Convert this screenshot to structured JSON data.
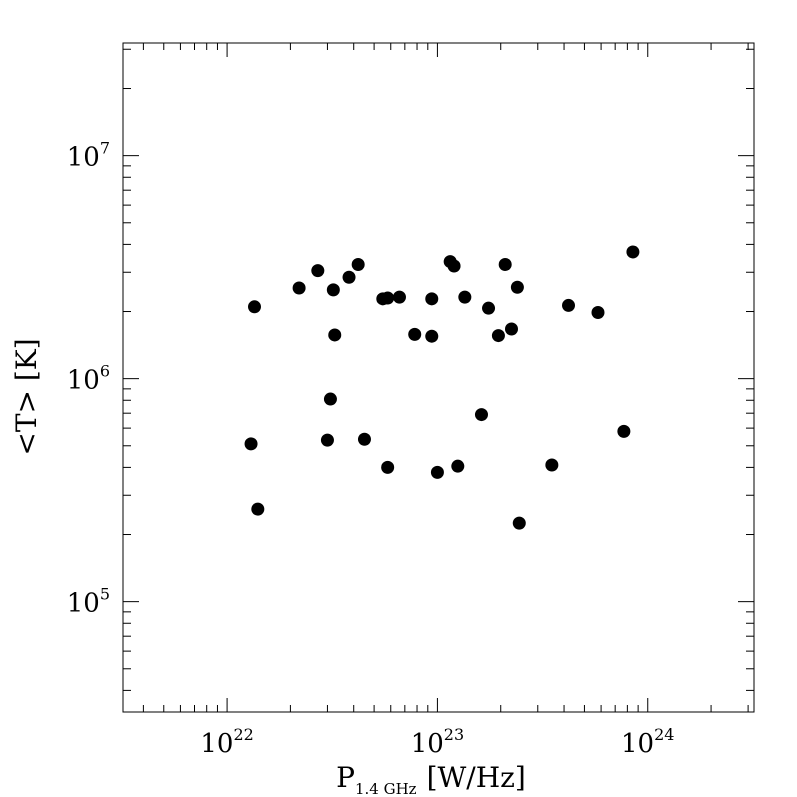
{
  "chart_data": {
    "type": "scatter",
    "title": "",
    "xlabel": {
      "main": "P",
      "sub": "1.4 GHz",
      "unit": "[W/Hz]"
    },
    "ylabel": "<T> [K]",
    "xscale": "log",
    "yscale": "log",
    "xlim": [
      3.2e+21,
      3.2e+24
    ],
    "ylim": [
      32000.0,
      32000000.0
    ],
    "grid": false,
    "marker_color": "#000000",
    "xticks": [
      {
        "base": "10",
        "exp": "22",
        "value": 1e+22
      },
      {
        "base": "10",
        "exp": "23",
        "value": 1e+23
      },
      {
        "base": "10",
        "exp": "24",
        "value": 1e+24
      }
    ],
    "yticks": [
      {
        "base": "10",
        "exp": "5",
        "value": 100000.0
      },
      {
        "base": "10",
        "exp": "6",
        "value": 1000000.0
      },
      {
        "base": "10",
        "exp": "7",
        "value": 10000000.0
      }
    ],
    "points": [
      {
        "x": 1.3e+22,
        "y": 510000.0
      },
      {
        "x": 1.35e+22,
        "y": 2100000.0
      },
      {
        "x": 1.4e+22,
        "y": 260000.0
      },
      {
        "x": 2.2e+22,
        "y": 2550000.0
      },
      {
        "x": 2.7e+22,
        "y": 3050000.0
      },
      {
        "x": 3e+22,
        "y": 530000.0
      },
      {
        "x": 3.1e+22,
        "y": 810000.0
      },
      {
        "x": 3.2e+22,
        "y": 2500000.0
      },
      {
        "x": 3.25e+22,
        "y": 1570000.0
      },
      {
        "x": 3.8e+22,
        "y": 2850000.0
      },
      {
        "x": 4.2e+22,
        "y": 3250000.0
      },
      {
        "x": 4.5e+22,
        "y": 535000.0
      },
      {
        "x": 5.5e+22,
        "y": 2280000.0
      },
      {
        "x": 5.8e+22,
        "y": 2300000.0
      },
      {
        "x": 5.8e+22,
        "y": 400000.0
      },
      {
        "x": 6.6e+22,
        "y": 2320000.0
      },
      {
        "x": 7.8e+22,
        "y": 1580000.0
      },
      {
        "x": 9.4e+22,
        "y": 2280000.0
      },
      {
        "x": 9.4e+22,
        "y": 1550000.0
      },
      {
        "x": 1e+23,
        "y": 380000.0
      },
      {
        "x": 1.15e+23,
        "y": 3350000.0
      },
      {
        "x": 1.2e+23,
        "y": 3200000.0
      },
      {
        "x": 1.25e+23,
        "y": 405000.0
      },
      {
        "x": 1.35e+23,
        "y": 2320000.0
      },
      {
        "x": 1.62e+23,
        "y": 690000.0
      },
      {
        "x": 1.75e+23,
        "y": 2070000.0
      },
      {
        "x": 1.95e+23,
        "y": 1560000.0
      },
      {
        "x": 2.1e+23,
        "y": 3250000.0
      },
      {
        "x": 2.25e+23,
        "y": 1670000.0
      },
      {
        "x": 2.4e+23,
        "y": 2570000.0
      },
      {
        "x": 2.45e+23,
        "y": 225000.0
      },
      {
        "x": 3.5e+23,
        "y": 410000.0
      },
      {
        "x": 4.2e+23,
        "y": 2130000.0
      },
      {
        "x": 5.8e+23,
        "y": 1980000.0
      },
      {
        "x": 7.7e+23,
        "y": 580000.0
      },
      {
        "x": 8.5e+23,
        "y": 3700000.0
      }
    ]
  }
}
